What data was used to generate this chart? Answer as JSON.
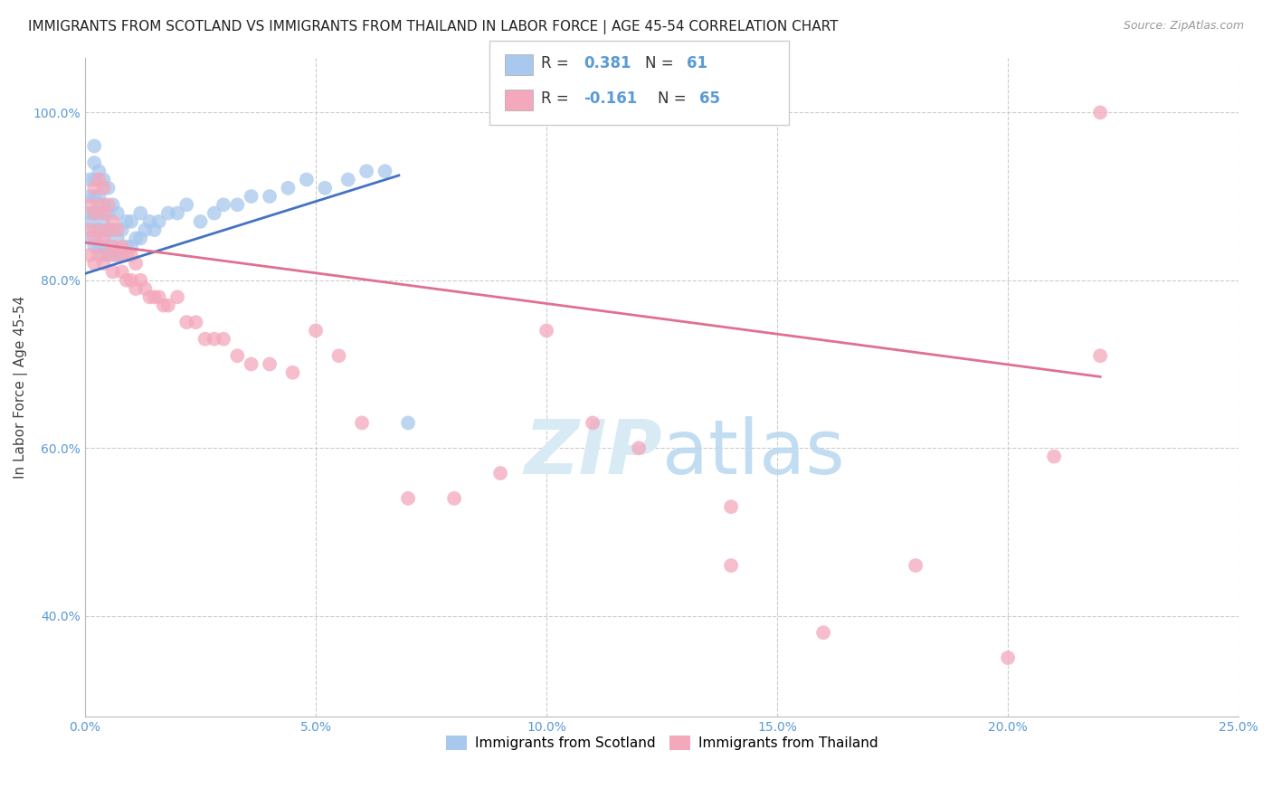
{
  "title": "IMMIGRANTS FROM SCOTLAND VS IMMIGRANTS FROM THAILAND IN LABOR FORCE | AGE 45-54 CORRELATION CHART",
  "source": "Source: ZipAtlas.com",
  "ylabel": "In Labor Force | Age 45-54",
  "xlim": [
    0.0,
    0.25
  ],
  "ylim": [
    0.28,
    1.065
  ],
  "xticks": [
    0.0,
    0.05,
    0.1,
    0.15,
    0.2,
    0.25
  ],
  "yticks": [
    0.4,
    0.6,
    0.8,
    1.0
  ],
  "ytick_labels": [
    "40.0%",
    "60.0%",
    "80.0%",
    "100.0%"
  ],
  "xtick_labels": [
    "0.0%",
    "5.0%",
    "10.0%",
    "15.0%",
    "20.0%",
    "25.0%"
  ],
  "scotland_R": 0.381,
  "scotland_N": 61,
  "thailand_R": -0.161,
  "thailand_N": 65,
  "scotland_color": "#A8C8EE",
  "thailand_color": "#F4A8BB",
  "scotland_line_color": "#4472C4",
  "thailand_line_color": "#E07090",
  "background_color": "#FFFFFF",
  "grid_color": "#CCCCCC",
  "watermark_color": "#D8EBF5",
  "scotland_x": [
    0.001,
    0.001,
    0.001,
    0.001,
    0.001,
    0.002,
    0.002,
    0.002,
    0.002,
    0.002,
    0.002,
    0.002,
    0.003,
    0.003,
    0.003,
    0.003,
    0.003,
    0.004,
    0.004,
    0.004,
    0.004,
    0.004,
    0.005,
    0.005,
    0.005,
    0.005,
    0.006,
    0.006,
    0.006,
    0.007,
    0.007,
    0.007,
    0.008,
    0.008,
    0.009,
    0.009,
    0.01,
    0.01,
    0.011,
    0.012,
    0.012,
    0.013,
    0.014,
    0.015,
    0.016,
    0.018,
    0.02,
    0.022,
    0.025,
    0.028,
    0.03,
    0.033,
    0.036,
    0.04,
    0.044,
    0.048,
    0.052,
    0.057,
    0.061,
    0.065,
    0.07
  ],
  "scotland_y": [
    0.85,
    0.87,
    0.88,
    0.9,
    0.92,
    0.84,
    0.86,
    0.88,
    0.9,
    0.92,
    0.94,
    0.96,
    0.84,
    0.86,
    0.88,
    0.9,
    0.93,
    0.83,
    0.85,
    0.87,
    0.89,
    0.92,
    0.84,
    0.86,
    0.88,
    0.91,
    0.83,
    0.86,
    0.89,
    0.83,
    0.85,
    0.88,
    0.83,
    0.86,
    0.84,
    0.87,
    0.84,
    0.87,
    0.85,
    0.85,
    0.88,
    0.86,
    0.87,
    0.86,
    0.87,
    0.88,
    0.88,
    0.89,
    0.87,
    0.88,
    0.89,
    0.89,
    0.9,
    0.9,
    0.91,
    0.92,
    0.91,
    0.92,
    0.93,
    0.93,
    0.63
  ],
  "thailand_x": [
    0.001,
    0.001,
    0.001,
    0.002,
    0.002,
    0.002,
    0.002,
    0.003,
    0.003,
    0.003,
    0.003,
    0.004,
    0.004,
    0.004,
    0.004,
    0.005,
    0.005,
    0.005,
    0.006,
    0.006,
    0.006,
    0.007,
    0.007,
    0.008,
    0.008,
    0.009,
    0.009,
    0.01,
    0.01,
    0.011,
    0.011,
    0.012,
    0.013,
    0.014,
    0.015,
    0.016,
    0.017,
    0.018,
    0.02,
    0.022,
    0.024,
    0.026,
    0.028,
    0.03,
    0.033,
    0.036,
    0.04,
    0.045,
    0.05,
    0.055,
    0.06,
    0.07,
    0.08,
    0.09,
    0.1,
    0.11,
    0.12,
    0.14,
    0.16,
    0.18,
    0.2,
    0.21,
    0.22,
    0.14,
    0.22
  ],
  "thailand_y": [
    0.83,
    0.86,
    0.89,
    0.82,
    0.85,
    0.88,
    0.91,
    0.83,
    0.86,
    0.89,
    0.92,
    0.82,
    0.85,
    0.88,
    0.91,
    0.83,
    0.86,
    0.89,
    0.81,
    0.84,
    0.87,
    0.83,
    0.86,
    0.81,
    0.84,
    0.8,
    0.83,
    0.8,
    0.83,
    0.79,
    0.82,
    0.8,
    0.79,
    0.78,
    0.78,
    0.78,
    0.77,
    0.77,
    0.78,
    0.75,
    0.75,
    0.73,
    0.73,
    0.73,
    0.71,
    0.7,
    0.7,
    0.69,
    0.74,
    0.71,
    0.63,
    0.54,
    0.54,
    0.57,
    0.74,
    0.63,
    0.6,
    0.53,
    0.38,
    0.46,
    0.35,
    0.59,
    0.71,
    0.46,
    1.0
  ],
  "scotland_line_x": [
    0.0,
    0.068
  ],
  "scotland_line_y": [
    0.808,
    0.925
  ],
  "thailand_line_x": [
    0.0,
    0.22
  ],
  "thailand_line_y": [
    0.845,
    0.685
  ]
}
